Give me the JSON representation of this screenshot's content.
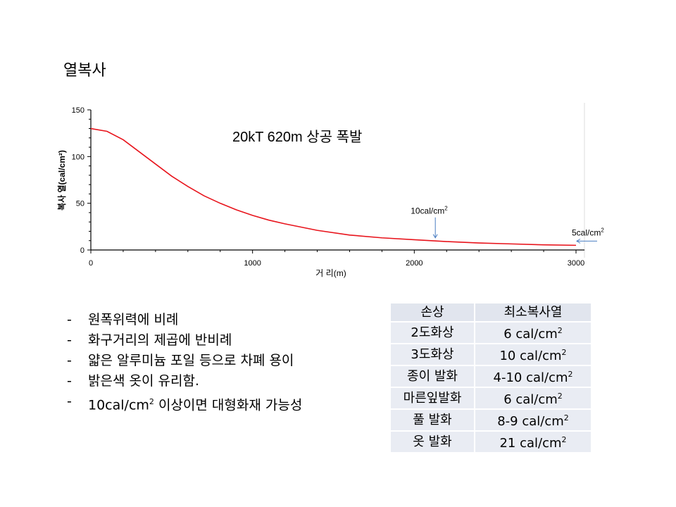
{
  "slide_title": "열복사",
  "chart_data": {
    "type": "line",
    "title": "20kT 620m 상공 폭발",
    "xlabel": "거 리(m)",
    "ylabel": "복사 열(cal/cm²)",
    "xlim": [
      0,
      3000
    ],
    "ylim": [
      0,
      150
    ],
    "x_ticks": [
      "0",
      "1000",
      "2000",
      "3000"
    ],
    "y_ticks": [
      "0",
      "50",
      "100",
      "150"
    ],
    "series": [
      {
        "name": "복사열",
        "color": "#e8141c",
        "x": [
          0,
          100,
          200,
          300,
          400,
          500,
          600,
          700,
          800,
          900,
          1000,
          1100,
          1200,
          1400,
          1600,
          1800,
          2000,
          2200,
          2400,
          2600,
          2800,
          3000
        ],
        "y": [
          130,
          127,
          118,
          105,
          92,
          79,
          68,
          58,
          50,
          43,
          37,
          32,
          28,
          21,
          16,
          13,
          11,
          9,
          7.5,
          6.5,
          5.5,
          5
        ]
      }
    ],
    "annotations": [
      {
        "text": "10cal/cm",
        "sup": "2",
        "x": 2130,
        "y": 10
      },
      {
        "text": "5cal/cm",
        "sup": "2",
        "x": 3000,
        "y": 5
      }
    ],
    "grid": false
  },
  "bullets": [
    {
      "dash": "-",
      "text": "원폭위력에 비례"
    },
    {
      "dash": "-",
      "text": "화구거리의 제곱에 반비례"
    },
    {
      "dash": "-",
      "text": "얇은 알루미늄 포일 등으로 차폐 용이"
    },
    {
      "dash": "-",
      "text": "밝은색 옷이 유리함."
    },
    {
      "dash": "-",
      "text": "10cal/cm",
      "sup": "2",
      "text2": " 이상이면 대형화재 가능성"
    }
  ],
  "table": {
    "headers": [
      "손상",
      "최소복사열"
    ],
    "rows": [
      {
        "damage": "2도화상",
        "value": "6 cal/cm",
        "sup": "2"
      },
      {
        "damage": "3도화상",
        "value": "10 cal/cm",
        "sup": "2"
      },
      {
        "damage": "종이 발화",
        "value": "4-10 cal/cm",
        "sup": "2"
      },
      {
        "damage": "마른잎발화",
        "value": "6 cal/cm",
        "sup": "2"
      },
      {
        "damage": "풀 발화",
        "value": "8-9 cal/cm",
        "sup": "2"
      },
      {
        "damage": "옷 발화",
        "value": "21 cal/cm",
        "sup": "2"
      }
    ]
  }
}
